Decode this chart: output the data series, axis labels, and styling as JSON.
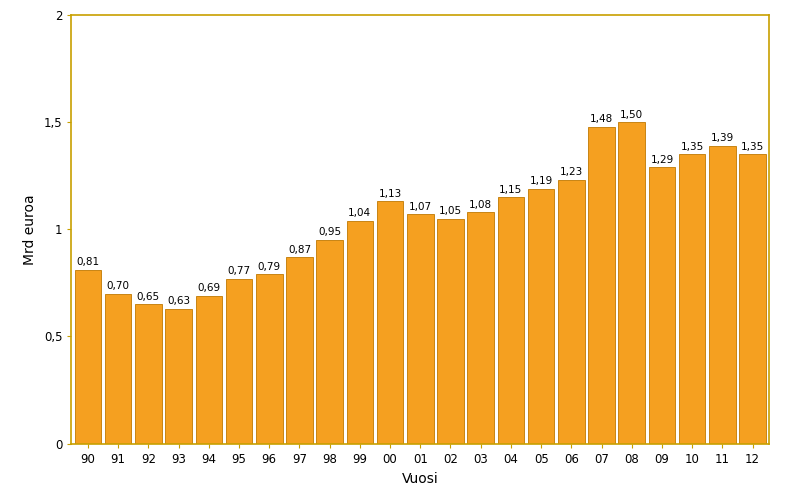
{
  "categories": [
    "90",
    "91",
    "92",
    "93",
    "94",
    "95",
    "96",
    "97",
    "98",
    "99",
    "00",
    "01",
    "02",
    "03",
    "04",
    "05",
    "06",
    "07",
    "08",
    "09",
    "10",
    "11",
    "12"
  ],
  "values": [
    0.81,
    0.7,
    0.65,
    0.63,
    0.69,
    0.77,
    0.79,
    0.87,
    0.95,
    1.04,
    1.13,
    1.07,
    1.05,
    1.08,
    1.15,
    1.19,
    1.23,
    1.48,
    1.5,
    1.29,
    1.35,
    1.39,
    1.35
  ],
  "bar_color": "#F5A020",
  "bar_edge_color": "#C07800",
  "ylabel": "Mrd euroa",
  "xlabel": "Vuosi",
  "ylim": [
    0,
    2.0
  ],
  "yticks": [
    0,
    0.5,
    1,
    1.5,
    2
  ],
  "ytick_labels": [
    "0",
    "0,5",
    "1",
    "1,5",
    "2"
  ],
  "label_fontsize": 7.5,
  "axis_label_fontsize": 10,
  "tick_fontsize": 8.5,
  "background_color": "#FFFFFF",
  "spine_color": "#C8A000",
  "bar_width": 0.88
}
